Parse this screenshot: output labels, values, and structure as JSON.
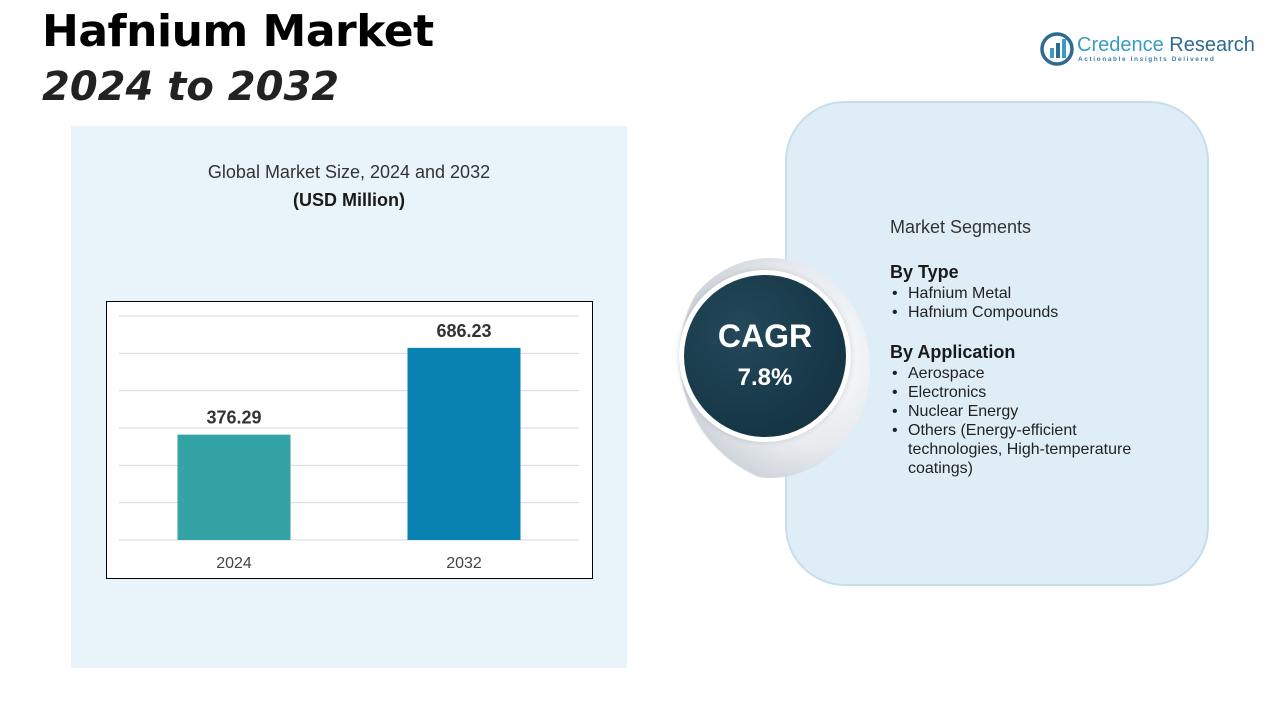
{
  "header": {
    "title": "Hafnium Market",
    "subtitle": "2024 to 2032"
  },
  "logo": {
    "name_part1": "Credence",
    "name_part2": " Research",
    "tagline": "Actionable Insights Delivered"
  },
  "chart_panel": {
    "title": "Global Market Size, 2024 and 2032",
    "unit": "(USD Million)"
  },
  "chart_data": {
    "type": "bar",
    "categories": [
      "2024",
      "2032"
    ],
    "values": [
      376.29,
      686.23
    ],
    "value_labels": [
      "376.29",
      "686.23"
    ],
    "bar_colors": [
      "#33a3a5",
      "#0a82b1"
    ],
    "title": "Global Market Size, 2024 and 2032",
    "ylabel": "(USD Million)",
    "ylim": [
      0,
      800
    ],
    "grid": true
  },
  "cagr": {
    "label": "CAGR",
    "value": "7.8%"
  },
  "segments": {
    "heading": "Market Segments",
    "groups": [
      {
        "title": "By Type",
        "items": [
          "Hafnium Metal",
          "Hafnium Compounds"
        ]
      },
      {
        "title": "By Application",
        "items": [
          "Aerospace",
          "Electronics",
          "Nuclear Energy",
          "Others (Energy-efficient technologies, High-temperature coatings)"
        ]
      }
    ]
  },
  "colors": {
    "panel_bg": "#e9f3fa",
    "card_bg": "#dfedf6",
    "cagr_circle": "#173848"
  }
}
